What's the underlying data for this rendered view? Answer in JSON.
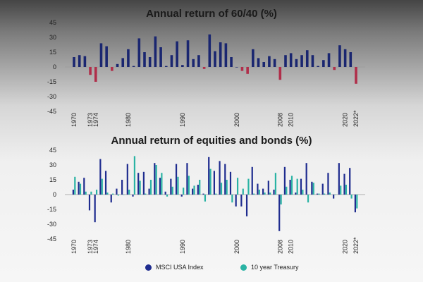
{
  "colors": {
    "msci": "#1f2c8f",
    "treasury": "#2ab3a4",
    "negative": "#b02e4a",
    "top_bar": "#1a2670"
  },
  "chart_data": [
    {
      "type": "bar",
      "title": "Annual return of 60/40 (%)",
      "ylim": [
        -45,
        45
      ],
      "yticks": [
        45,
        30,
        15,
        0,
        -15,
        -30,
        -45
      ],
      "grid": false,
      "x_tick_labels": [
        "1970",
        "1973",
        "1974",
        "1980",
        "1990",
        "2000",
        "2008",
        "2010",
        "2020",
        "2022*"
      ],
      "x": [
        1970,
        1971,
        1972,
        1973,
        1974,
        1975,
        1976,
        1977,
        1978,
        1979,
        1980,
        1981,
        1982,
        1983,
        1984,
        1985,
        1986,
        1987,
        1988,
        1989,
        1990,
        1991,
        1992,
        1993,
        1994,
        1995,
        1996,
        1997,
        1998,
        1999,
        2000,
        2001,
        2002,
        2003,
        2004,
        2005,
        2006,
        2007,
        2008,
        2009,
        2010,
        2011,
        2012,
        2013,
        2014,
        2015,
        2016,
        2017,
        2018,
        2019,
        2020,
        2021,
        2022
      ],
      "series": [
        {
          "values": [
            10,
            12,
            11,
            -8,
            -15,
            24,
            21,
            -4,
            3,
            9,
            18,
            1,
            29,
            15,
            10,
            31,
            20,
            1,
            12,
            26,
            2,
            27,
            8,
            12,
            -2,
            33,
            16,
            25,
            24,
            10,
            0,
            -4,
            -7,
            18,
            9,
            5,
            11,
            8,
            -13,
            12,
            14,
            8,
            12,
            17,
            12,
            1,
            7,
            14,
            -3,
            22,
            18,
            15,
            -17
          ]
        }
      ]
    },
    {
      "type": "bar",
      "title": "Annual return of equities and bonds (%)",
      "ylim": [
        -45,
        45
      ],
      "yticks": [
        45,
        30,
        15,
        0,
        -15,
        -30,
        -45
      ],
      "grid": false,
      "x_tick_labels": [
        "1970",
        "1973",
        "1974",
        "1980",
        "1990",
        "2000",
        "2008",
        "2010",
        "2020",
        "2022*"
      ],
      "x": [
        1970,
        1971,
        1972,
        1973,
        1974,
        1975,
        1976,
        1977,
        1978,
        1979,
        1980,
        1981,
        1982,
        1983,
        1984,
        1985,
        1986,
        1987,
        1988,
        1989,
        1990,
        1991,
        1992,
        1993,
        1994,
        1995,
        1996,
        1997,
        1998,
        1999,
        2000,
        2001,
        2002,
        2003,
        2004,
        2005,
        2006,
        2007,
        2008,
        2009,
        2010,
        2011,
        2012,
        2013,
        2014,
        2015,
        2016,
        2017,
        2018,
        2019,
        2020,
        2021,
        2022
      ],
      "series": [
        {
          "name": "MSCI USA Index",
          "values": [
            5,
            13,
            17,
            -16,
            -28,
            36,
            24,
            -8,
            6,
            15,
            31,
            -2,
            22,
            23,
            6,
            32,
            17,
            3,
            16,
            31,
            -2,
            32,
            6,
            10,
            1,
            38,
            24,
            34,
            31,
            23,
            -12,
            -12,
            -22,
            28,
            11,
            6,
            14,
            5,
            -37,
            28,
            15,
            2,
            16,
            32,
            13,
            1,
            11,
            22,
            -4,
            32,
            21,
            27,
            -18
          ]
        },
        {
          "name": "10 year Treasury",
          "values": [
            18,
            11,
            3,
            3,
            5,
            16,
            2,
            1,
            -1,
            0,
            5,
            39,
            14,
            1,
            15,
            30,
            22,
            -2,
            8,
            18,
            7,
            19,
            9,
            15,
            -7,
            26,
            1,
            12,
            15,
            -8,
            17,
            6,
            16,
            1,
            5,
            2,
            2,
            22,
            -10,
            8,
            19,
            16,
            5,
            -8,
            12,
            1,
            1,
            2,
            0,
            9,
            10,
            -4,
            -14
          ]
        }
      ]
    }
  ],
  "legend": {
    "items": [
      {
        "label": "MSCI USA Index"
      },
      {
        "label": "10 year Treasury"
      }
    ]
  }
}
